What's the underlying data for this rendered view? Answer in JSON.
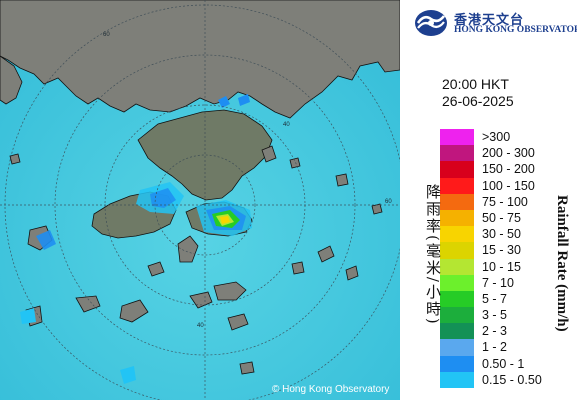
{
  "header": {
    "org_name_zh": "香港天文台",
    "org_name_en": "HONG KONG OBSERVATORY"
  },
  "timestamp": {
    "time": "20:00 HKT",
    "date": "26-06-2025"
  },
  "legend": {
    "title_en": "Rainfall Rate (mm/h)",
    "title_zh": "降雨率(毫米/小時)",
    "items": [
      {
        "label": ">300",
        "color": "#ee22ee"
      },
      {
        "label": "200 - 300",
        "color": "#c0167e"
      },
      {
        "label": "150 - 200",
        "color": "#d8001c"
      },
      {
        "label": "100 - 150",
        "color": "#ff1a1a"
      },
      {
        "label": "75 - 100",
        "color": "#f46a10"
      },
      {
        "label": "50 - 75",
        "color": "#f5b100"
      },
      {
        "label": "30 - 50",
        "color": "#f8d400"
      },
      {
        "label": "15 - 30",
        "color": "#dcd400"
      },
      {
        "label": "10 - 15",
        "color": "#b4e632"
      },
      {
        "label": "7 - 10",
        "color": "#6cf02c"
      },
      {
        "label": "5 - 7",
        "color": "#26cc26"
      },
      {
        "label": "3 - 5",
        "color": "#1cae3c"
      },
      {
        "label": "2 - 3",
        "color": "#139156"
      },
      {
        "label": "1 - 2",
        "color": "#5aa8ee"
      },
      {
        "label": "0.50 - 1",
        "color": "#1e8ef2"
      },
      {
        "label": "0.15 - 0.50",
        "color": "#22c4f5"
      }
    ]
  },
  "map": {
    "range_ring_labels": [
      "60",
      "40",
      "60",
      "40"
    ],
    "sea_color": "#3ec6de",
    "land_color": "#7b7c76"
  },
  "footer": {
    "copyright": "© Hong Kong Observatory"
  }
}
